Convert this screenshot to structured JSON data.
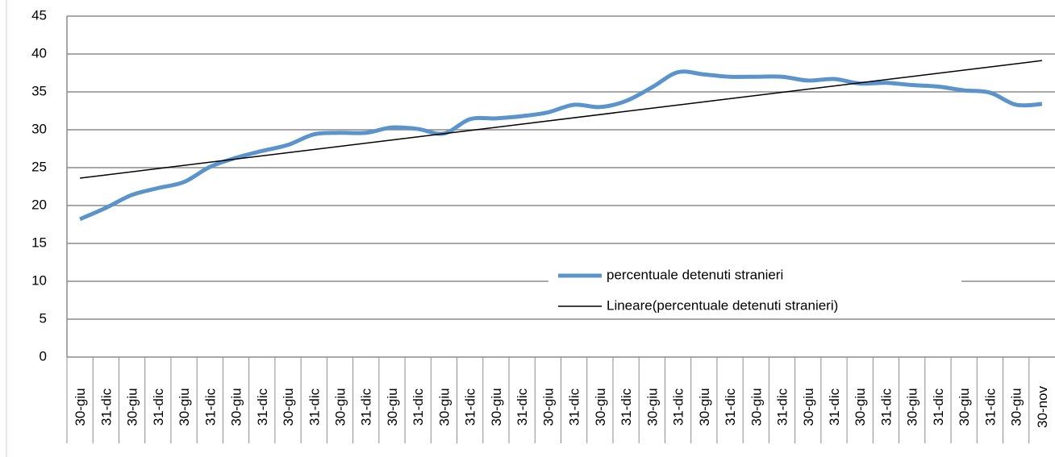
{
  "chart_data": {
    "type": "line",
    "categories": [
      "30-giu",
      "31-dic",
      "30-giu",
      "31-dic",
      "30-giu",
      "31-dic",
      "30-giu",
      "31-dic",
      "30-giu",
      "31-dic",
      "30-giu",
      "31-dic",
      "30-giu",
      "31-dic",
      "30-giu",
      "31-dic",
      "30-giu",
      "31-dic",
      "30-giu",
      "31-dic",
      "30-giu",
      "31-dic",
      "30-giu",
      "31-dic",
      "30-giu",
      "31-dic",
      "30-giu",
      "31-dic",
      "30-giu",
      "31-dic",
      "30-giu",
      "31-dic",
      "30-giu",
      "31-dic",
      "30-giu",
      "31-dic",
      "30-giu",
      "30-nov"
    ],
    "series": [
      {
        "name": "percentuale detenuti stranieri",
        "color": "#5b93cb",
        "values": [
          18.2,
          19.7,
          21.4,
          22.3,
          23.1,
          25.1,
          26.3,
          27.2,
          28.0,
          29.4,
          29.6,
          29.6,
          30.3,
          30.1,
          29.5,
          31.4,
          31.5,
          31.8,
          32.3,
          33.3,
          33.0,
          33.8,
          35.6,
          37.6,
          37.3,
          37.0,
          37.0,
          37.0,
          36.5,
          36.7,
          36.1,
          36.2,
          35.9,
          35.7,
          35.2,
          34.9,
          33.3,
          33.4
        ]
      },
      {
        "name": "Lineare(percentuale detenuti stranieri)",
        "color": "#000000",
        "trendline": "linear"
      }
    ],
    "ylim": [
      0,
      45
    ],
    "yticks": [
      0,
      5,
      10,
      15,
      20,
      25,
      30,
      35,
      40,
      45
    ],
    "grid": true
  }
}
